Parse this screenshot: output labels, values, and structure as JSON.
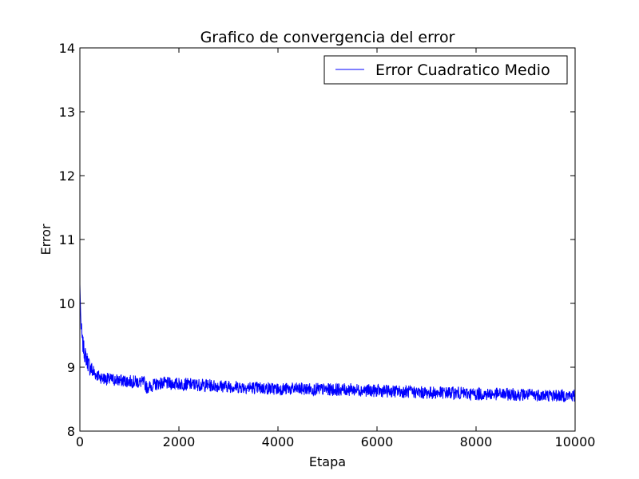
{
  "chart_data": {
    "type": "line",
    "title": "Grafico de convergencia del error",
    "xlabel": "Etapa",
    "ylabel": "Error",
    "xlim": [
      0,
      10000
    ],
    "ylim": [
      8,
      14
    ],
    "xticks": [
      0,
      2000,
      4000,
      6000,
      8000,
      10000
    ],
    "yticks": [
      8,
      9,
      10,
      11,
      12,
      13,
      14
    ],
    "grid": false,
    "legend_position": "top-right",
    "series": [
      {
        "name": "Error Cuadratico Medio",
        "color": "#0000ff",
        "noisy": true,
        "x": [
          0,
          20,
          50,
          100,
          200,
          300,
          400,
          500,
          700,
          1000,
          1300,
          1350,
          1600,
          2000,
          2500,
          3000,
          3500,
          4000,
          4500,
          5000,
          5500,
          6000,
          6500,
          7000,
          7500,
          8000,
          8500,
          9000,
          9500,
          10000
        ],
        "y": [
          10.3,
          9.7,
          9.4,
          9.2,
          9.0,
          8.9,
          8.85,
          8.82,
          8.8,
          8.78,
          8.76,
          8.68,
          8.75,
          8.74,
          8.72,
          8.7,
          8.68,
          8.66,
          8.66,
          8.65,
          8.65,
          8.63,
          8.62,
          8.6,
          8.6,
          8.58,
          8.58,
          8.57,
          8.56,
          8.55
        ]
      }
    ]
  }
}
